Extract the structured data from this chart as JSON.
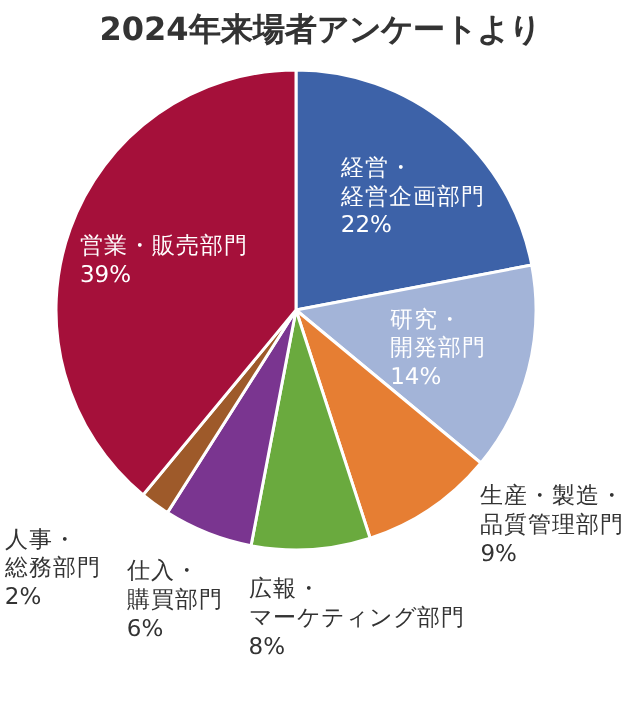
{
  "chart_data": {
    "type": "pie",
    "title": "2024年来場者アンケートより",
    "categories": [
      "経営・経営企画部門",
      "研究・開発部門",
      "生産・製造・品質管理部門",
      "広報・マーケティング部門",
      "仕入・購買部門",
      "人事・総務部門",
      "営業・販売部門"
    ],
    "values": [
      22,
      14,
      9,
      8,
      6,
      2,
      39
    ],
    "colors": [
      "#3d62a8",
      "#a3b4d8",
      "#e67e33",
      "#6aaa3e",
      "#7a3590",
      "#9e5a2a",
      "#a5103a"
    ],
    "value_labels": [
      "22%",
      "14%",
      "9%",
      "8%",
      "6%",
      "2%",
      "39%"
    ]
  }
}
